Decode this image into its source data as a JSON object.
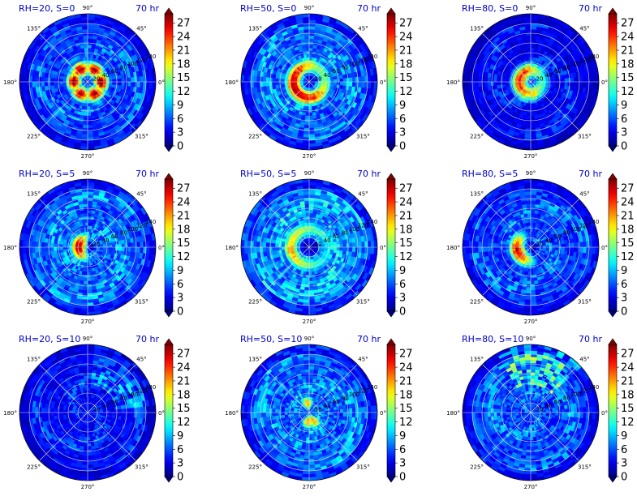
{
  "figure": {
    "time_label": "70 hr"
  },
  "colorbar": {
    "ticks": [
      "0",
      "3",
      "6",
      "9",
      "12",
      "15",
      "18",
      "21",
      "24",
      "27"
    ],
    "colormap": "jet",
    "vmin": 0,
    "vmax": 29
  },
  "polar_axes": {
    "angle_labels": [
      "0°",
      "45°",
      "90°",
      "135°",
      "180°",
      "225°",
      "270°",
      "315°"
    ],
    "radial_labels": [
      "20",
      "40",
      "60",
      "80",
      "100",
      "120",
      "140"
    ],
    "radial_label_angle_deg": 22.5
  },
  "chart_data": [
    {
      "type": "heatmap",
      "projection": "polar",
      "title": "RH=20, S=0",
      "time": "70 hr",
      "features": {
        "eye_level": 1,
        "eyewall_radius": 30,
        "eyewall_peak": 27,
        "shape": "triangular",
        "peak_sector_deg": 180,
        "outer_level": 5
      }
    },
    {
      "type": "heatmap",
      "projection": "polar",
      "title": "RH=50, S=0",
      "time": "70 hr",
      "features": {
        "eye_level": 1,
        "eyewall_radius": 35,
        "eyewall_peak": 27,
        "shape": "ring",
        "peak_sector_deg": 210,
        "outer_level": 6
      }
    },
    {
      "type": "heatmap",
      "projection": "polar",
      "title": "RH=80, S=0",
      "time": "70 hr",
      "features": {
        "eye_level": 1,
        "eyewall_radius": 25,
        "eyewall_peak": 24,
        "shape": "ring",
        "peak_sector_deg": 180,
        "outer_level": 3
      }
    },
    {
      "type": "heatmap",
      "projection": "polar",
      "title": "RH=20, S=5",
      "time": "70 hr",
      "features": {
        "eye_level": 1,
        "eyewall_radius": 20,
        "eyewall_peak": 27,
        "shape": "crescent",
        "peak_sector_deg": 180,
        "outer_level": 6
      }
    },
    {
      "type": "heatmap",
      "projection": "polar",
      "title": "RH=50, S=5",
      "time": "70 hr",
      "features": {
        "eye_level": 1,
        "eyewall_radius": 40,
        "eyewall_peak": 18,
        "shape": "ring",
        "peak_sector_deg": 180,
        "outer_level": 7
      }
    },
    {
      "type": "heatmap",
      "projection": "polar",
      "title": "RH=80, S=5",
      "time": "70 hr",
      "features": {
        "eye_level": 1,
        "eyewall_radius": 30,
        "eyewall_peak": 24,
        "shape": "crescent",
        "peak_sector_deg": 200,
        "outer_level": 5
      }
    },
    {
      "type": "heatmap",
      "projection": "polar",
      "title": "RH=20, S=10",
      "time": "70 hr",
      "features": {
        "eye_level": 3,
        "eyewall_radius": 0,
        "eyewall_peak": 4,
        "shape": "diffuse",
        "peak_sector_deg": 45,
        "outer_level": 4
      }
    },
    {
      "type": "heatmap",
      "projection": "polar",
      "title": "RH=50, S=10",
      "time": "70 hr",
      "features": {
        "eye_level": 4,
        "eyewall_radius": 20,
        "eyewall_peak": 20,
        "shape": "spot",
        "peak_sector_deg": 100,
        "outer_level": 6
      }
    },
    {
      "type": "heatmap",
      "projection": "polar",
      "title": "RH=80, S=10",
      "time": "70 hr",
      "features": {
        "eye_level": 3,
        "eyewall_radius": 0,
        "eyewall_peak": 8,
        "shape": "diffuse",
        "peak_sector_deg": 80,
        "outer_level": 6
      }
    }
  ]
}
